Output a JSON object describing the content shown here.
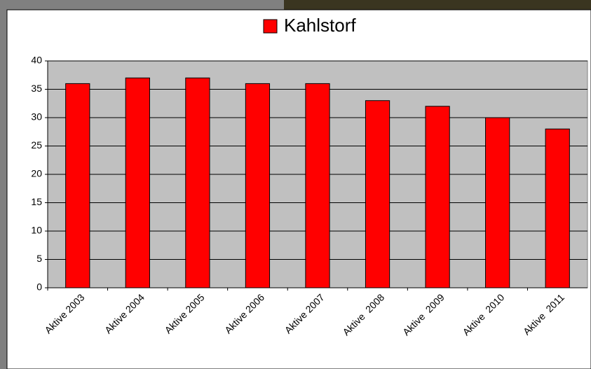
{
  "chart_data": {
    "type": "bar",
    "legend": "Kahlstorf",
    "categories": [
      "Aktive 2003",
      "Aktive 2004",
      "Aktive 2005",
      "Aktive 2006",
      "Aktive 2007",
      "Aktive  2008",
      "Aktive  2009",
      "Aktive  2010",
      "Aktive  2011"
    ],
    "values": [
      36,
      37,
      37,
      36,
      36,
      33,
      32,
      30,
      28
    ],
    "color": "#ff0000",
    "ylim": [
      0,
      40
    ],
    "yticks": [
      0,
      5,
      10,
      15,
      20,
      25,
      30,
      35,
      40
    ],
    "grid": true
  }
}
